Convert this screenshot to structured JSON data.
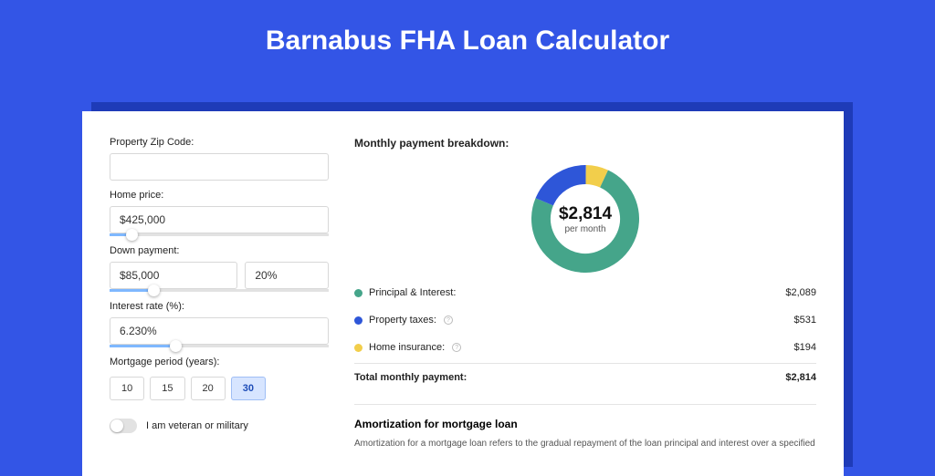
{
  "page_title": "Barnabus FHA Loan Calculator",
  "colors": {
    "page_bg": "#3355e6",
    "card_shadow": "#1e3bb8",
    "card_bg": "#ffffff",
    "slider_fill": "#7fb8ff",
    "period_active_bg": "#d7e5ff"
  },
  "form": {
    "zip_label": "Property Zip Code:",
    "zip_value": "",
    "home_price_label": "Home price:",
    "home_price_value": "$425,000",
    "home_price_slider_pct": 10,
    "down_label": "Down payment:",
    "down_value": "$85,000",
    "down_pct_value": "20%",
    "down_slider_pct": 20,
    "rate_label": "Interest rate (%):",
    "rate_value": "6.230%",
    "rate_slider_pct": 30,
    "period_label": "Mortgage period (years):",
    "periods": [
      "10",
      "15",
      "20",
      "30"
    ],
    "period_selected": "30",
    "veteran_label": "I am veteran or military",
    "veteran_on": false
  },
  "breakdown": {
    "heading": "Monthly payment breakdown:",
    "donut": {
      "size": 118,
      "thickness": 21,
      "center_value": "$2,814",
      "center_sub": "per month",
      "slices": [
        {
          "label": "Principal & Interest",
          "color": "#45a58a",
          "pct": 74.2
        },
        {
          "label": "Property taxes",
          "color": "#2e56d8",
          "pct": 18.9
        },
        {
          "label": "Home insurance",
          "color": "#f2ce4b",
          "pct": 6.9
        }
      ]
    },
    "rows": [
      {
        "label": "Principal & Interest:",
        "color": "#45a58a",
        "value": "$2,089",
        "info": false
      },
      {
        "label": "Property taxes:",
        "color": "#2e56d8",
        "value": "$531",
        "info": true
      },
      {
        "label": "Home insurance:",
        "color": "#f2ce4b",
        "value": "$194",
        "info": true
      }
    ],
    "total_label": "Total monthly payment:",
    "total_value": "$2,814"
  },
  "amortization": {
    "title": "Amortization for mortgage loan",
    "text": "Amortization for a mortgage loan refers to the gradual repayment of the loan principal and interest over a specified"
  }
}
